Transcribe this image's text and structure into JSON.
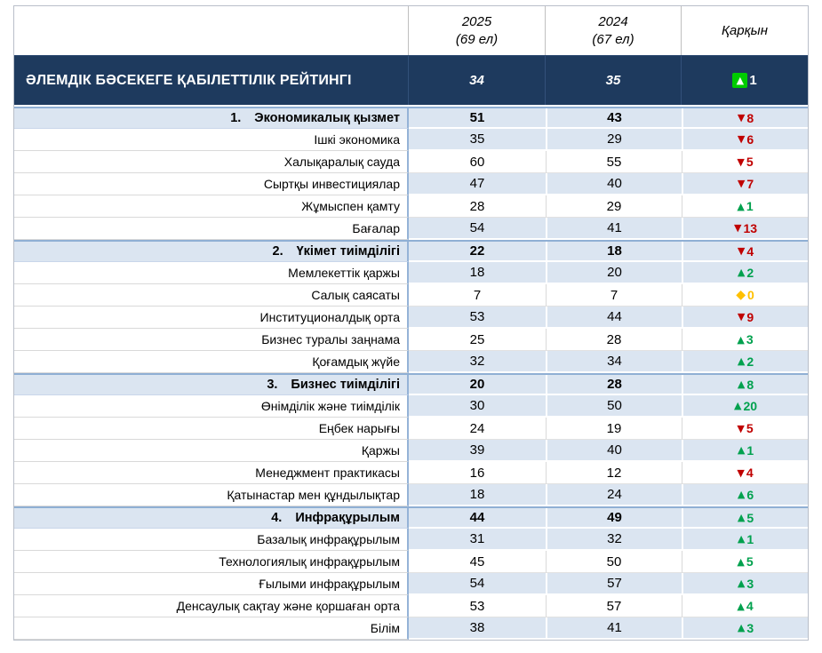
{
  "chart_data": {
    "type": "table",
    "title": "ӘЛЕМДІК БӘСЕКЕГЕ ҚАБІЛЕТТІЛІК РЕЙТИНГІ",
    "columns": {
      "c2025_line1": "2025",
      "c2025_line2": "(69 ел)",
      "c2024_line1": "2024",
      "c2024_line2": "(67 ел)",
      "trend": "Қарқын"
    },
    "overall": {
      "rank_2025": "34",
      "rank_2024": "35",
      "trend": {
        "dir": "up",
        "value": "1"
      }
    },
    "sections": [
      {
        "num": "1.",
        "label": "Экономикалық қызмет",
        "rank_2025": "51",
        "rank_2024": "43",
        "trend": {
          "dir": "down",
          "value": "8"
        },
        "rows": [
          {
            "label": "Ішкі экономика",
            "rank_2025": "35",
            "rank_2024": "29",
            "trend": {
              "dir": "down",
              "value": "6"
            }
          },
          {
            "label": "Халықаралық сауда",
            "rank_2025": "60",
            "rank_2024": "55",
            "trend": {
              "dir": "down",
              "value": "5"
            }
          },
          {
            "label": "Сыртқы инвестициялар",
            "rank_2025": "47",
            "rank_2024": "40",
            "trend": {
              "dir": "down",
              "value": "7"
            }
          },
          {
            "label": "Жұмыспен қамту",
            "rank_2025": "28",
            "rank_2024": "29",
            "trend": {
              "dir": "up",
              "value": "1"
            }
          },
          {
            "label": "Бағалар",
            "rank_2025": "54",
            "rank_2024": "41",
            "trend": {
              "dir": "down",
              "value": "13"
            }
          }
        ]
      },
      {
        "num": "2.",
        "label": "Үкімет тиімділігі",
        "rank_2025": "22",
        "rank_2024": "18",
        "trend": {
          "dir": "down",
          "value": "4"
        },
        "rows": [
          {
            "label": "Мемлекеттік қаржы",
            "rank_2025": "18",
            "rank_2024": "20",
            "trend": {
              "dir": "up",
              "value": "2"
            }
          },
          {
            "label": "Салық саясаты",
            "rank_2025": "7",
            "rank_2024": "7",
            "trend": {
              "dir": "same",
              "value": "0"
            }
          },
          {
            "label": "Институционалдық орта",
            "rank_2025": "53",
            "rank_2024": "44",
            "trend": {
              "dir": "down",
              "value": "9"
            }
          },
          {
            "label": "Бизнес туралы заңнама",
            "rank_2025": "25",
            "rank_2024": "28",
            "trend": {
              "dir": "up",
              "value": "3"
            }
          },
          {
            "label": "Қоғамдық жүйе",
            "rank_2025": "32",
            "rank_2024": "34",
            "trend": {
              "dir": "up",
              "value": "2"
            }
          }
        ]
      },
      {
        "num": "3.",
        "label": "Бизнес тиімділігі",
        "rank_2025": "20",
        "rank_2024": "28",
        "trend": {
          "dir": "up",
          "value": "8"
        },
        "rows": [
          {
            "label": "Өнімділік және тиімділік",
            "rank_2025": "30",
            "rank_2024": "50",
            "trend": {
              "dir": "up",
              "value": "20"
            }
          },
          {
            "label": "Еңбек нарығы",
            "rank_2025": "24",
            "rank_2024": "19",
            "trend": {
              "dir": "down",
              "value": "5"
            }
          },
          {
            "label": "Қаржы",
            "rank_2025": "39",
            "rank_2024": "40",
            "trend": {
              "dir": "up",
              "value": "1"
            }
          },
          {
            "label": "Менеджмент практикасы",
            "rank_2025": "16",
            "rank_2024": "12",
            "trend": {
              "dir": "down",
              "value": "4"
            }
          },
          {
            "label": "Қатынастар мен құндылықтар",
            "rank_2025": "18",
            "rank_2024": "24",
            "trend": {
              "dir": "up",
              "value": "6"
            }
          }
        ]
      },
      {
        "num": "4.",
        "label": "Инфрақұрылым",
        "rank_2025": "44",
        "rank_2024": "49",
        "trend": {
          "dir": "up",
          "value": "5"
        },
        "rows": [
          {
            "label": "Базалық инфрақұрылым",
            "rank_2025": "31",
            "rank_2024": "32",
            "trend": {
              "dir": "up",
              "value": "1"
            }
          },
          {
            "label": "Технологиялық инфрақұрылым",
            "rank_2025": "45",
            "rank_2024": "50",
            "trend": {
              "dir": "up",
              "value": "5"
            }
          },
          {
            "label": "Ғылыми инфрақұрылым",
            "rank_2025": "54",
            "rank_2024": "57",
            "trend": {
              "dir": "up",
              "value": "3"
            }
          },
          {
            "label": "Денсаулық сақтау және қоршаған орта",
            "rank_2025": "53",
            "rank_2024": "57",
            "trend": {
              "dir": "up",
              "value": "4"
            }
          },
          {
            "label": "Білім",
            "rank_2025": "38",
            "rank_2024": "41",
            "trend": {
              "dir": "up",
              "value": "3"
            }
          }
        ]
      }
    ]
  },
  "icons": {
    "up-triangle": "▲",
    "down-triangle": "▼",
    "same-diamond": "◆"
  },
  "colors": {
    "navy": "#1E3A5E",
    "band_blue": "#DBE5F1",
    "up_green": "#00A14E",
    "down_red": "#C00000",
    "same_amber": "#FFC000",
    "overall_icon_green": "#00CC00",
    "divider_blue": "#95B3D7"
  }
}
